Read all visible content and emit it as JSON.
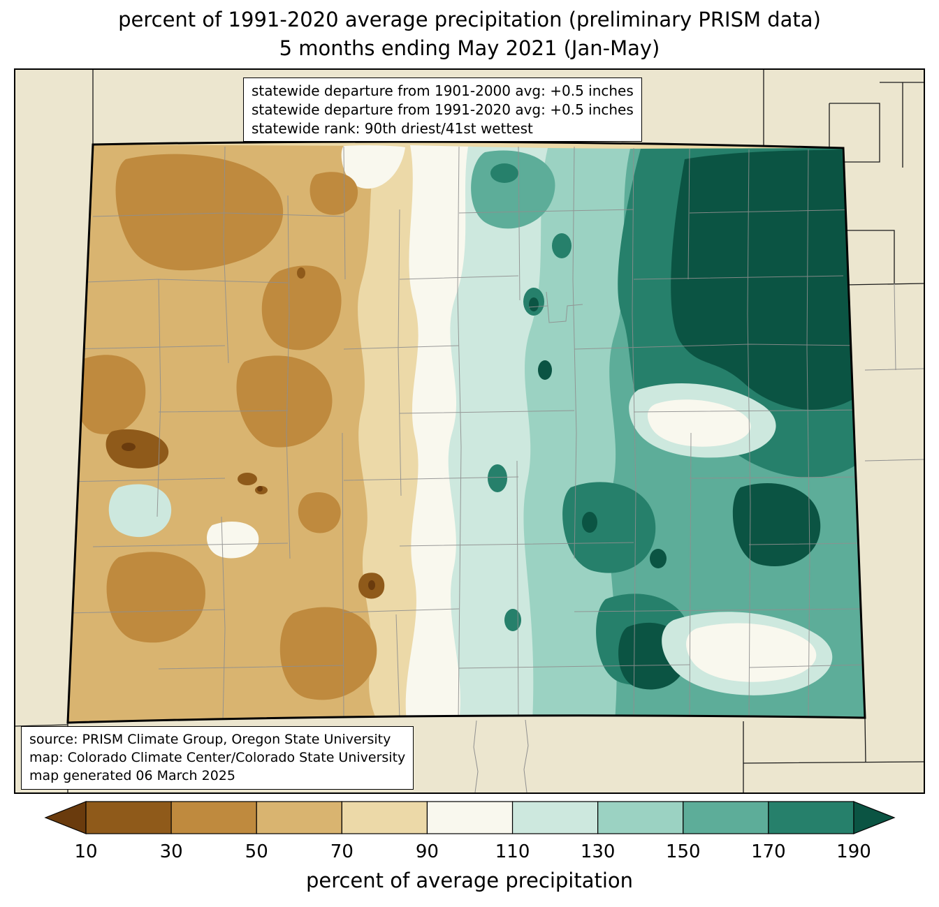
{
  "title": {
    "line1": "percent of 1991-2020 average precipitation (preliminary PRISM data)",
    "line2": "5 months ending May 2021 (Jan-May)"
  },
  "info_box": {
    "lines": [
      "statewide departure from 1901-2000 avg: +0.5 inches",
      "statewide departure from 1991-2020 avg: +0.5 inches",
      "statewide rank: 90th driest/41st wettest"
    ]
  },
  "source_box": {
    "lines": [
      "source: PRISM Climate Group, Oregon State University",
      "map: Colorado Climate Center/Colorado State University",
      "map generated 06 March 2025"
    ]
  },
  "colorbar": {
    "label": "percent of average precipitation",
    "ticks": [
      "10",
      "30",
      "50",
      "70",
      "90",
      "110",
      "130",
      "150",
      "170",
      "190"
    ],
    "colors": [
      "#6a3b0d",
      "#8f5a1a",
      "#bf8a3e",
      "#d9b470",
      "#ecd9a8",
      "#f9f8ee",
      "#cde8de",
      "#9bd2c2",
      "#5dad99",
      "#26806b",
      "#0b5443"
    ]
  },
  "palette": {
    "bg": "#ece6cf",
    "base_70_90": "#ecd9a8",
    "tan_50_70": "#d9b470",
    "brown_30_50": "#bf8a3e",
    "brown_10_30": "#8f5a1a",
    "brown_lt10": "#6a3b0d",
    "white_90_110": "#f9f8ee",
    "teal_110_130": "#cde8de",
    "teal_130_150": "#9bd2c2",
    "teal_150_170": "#5dad99",
    "teal_170_190": "#26806b",
    "teal_gt190": "#0b5443",
    "county_line": "#8f8f8f",
    "neighbor_line": "#1a1a1a",
    "state_border": "#000000"
  }
}
